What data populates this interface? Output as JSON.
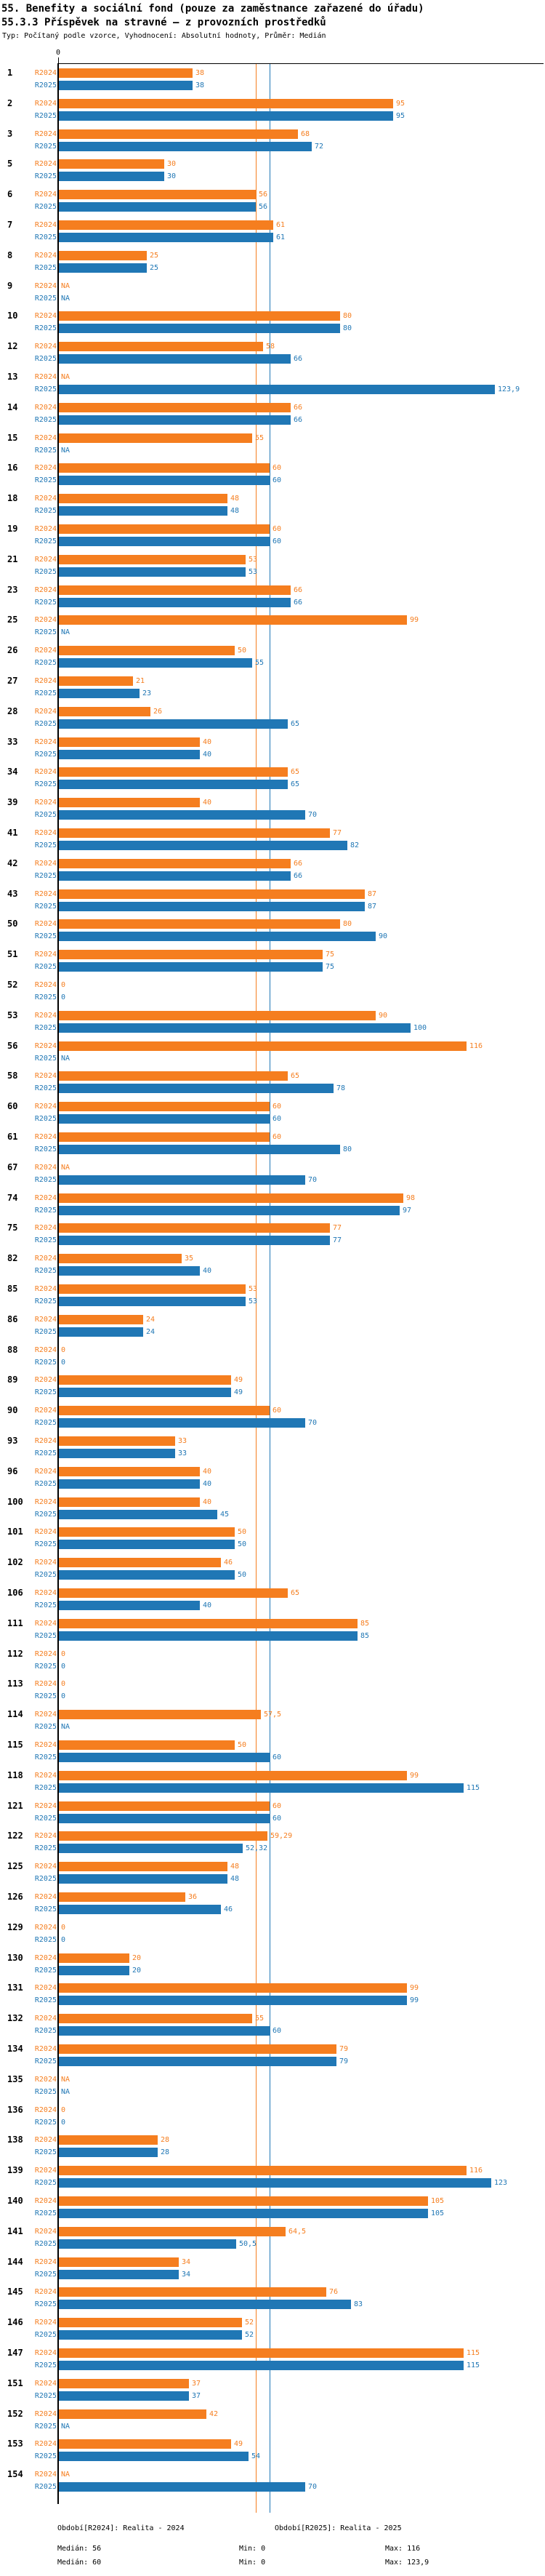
{
  "header": {
    "title_line1": "55. Benefity a sociální fond (pouze za zaměstnance zařazené do úřadu)",
    "title_line2": "55.3.3 Příspěvek na stravné – z provozních prostředků",
    "subtitle": "Typ: Počítaný podle vzorce, Vyhodnocení: Absolutní hodnoty, Průměr: Medián"
  },
  "footer": {
    "legend_2024": "Období[R2024]: Realita - 2024",
    "legend_2025": "Období[R2025]: Realita - 2025",
    "stats_2024": {
      "median": "Medián: 56",
      "min": "Min: 0",
      "max": "Max: 116"
    },
    "stats_2025": {
      "median": "Medián: 60",
      "min": "Min: 0",
      "max": "Max: 123,9"
    }
  },
  "chart_data": {
    "type": "bar",
    "orientation": "horizontal",
    "axis_zero_label": "0",
    "value_axis_min": 0,
    "value_axis_max_shown": 123.9,
    "grid": "median-reference-lines-only",
    "legend_position": "bottom",
    "series": [
      {
        "key": "r2024",
        "name": "R2024",
        "color": "#f57e1f",
        "median": 56,
        "min": 0,
        "max": 116
      },
      {
        "key": "r2025",
        "name": "R2025",
        "color": "#2077b5",
        "median": 60,
        "min": 0,
        "max": 123.9
      }
    ],
    "rows": [
      {
        "id": "1",
        "r2024": "38",
        "r2025": "38"
      },
      {
        "id": "2",
        "r2024": "95",
        "r2025": "95"
      },
      {
        "id": "3",
        "r2024": "68",
        "r2025": "72"
      },
      {
        "id": "5",
        "r2024": "30",
        "r2025": "30"
      },
      {
        "id": "6",
        "r2024": "56",
        "r2025": "56"
      },
      {
        "id": "7",
        "r2024": "61",
        "r2025": "61"
      },
      {
        "id": "8",
        "r2024": "25",
        "r2025": "25"
      },
      {
        "id": "9",
        "r2024": "NA",
        "r2025": "NA"
      },
      {
        "id": "10",
        "r2024": "80",
        "r2025": "80"
      },
      {
        "id": "12",
        "r2024": "58",
        "r2025": "66"
      },
      {
        "id": "13",
        "r2024": "NA",
        "r2025": "123,9"
      },
      {
        "id": "14",
        "r2024": "66",
        "r2025": "66"
      },
      {
        "id": "15",
        "r2024": "55",
        "r2025": "NA"
      },
      {
        "id": "16",
        "r2024": "60",
        "r2025": "60"
      },
      {
        "id": "18",
        "r2024": "48",
        "r2025": "48"
      },
      {
        "id": "19",
        "r2024": "60",
        "r2025": "60"
      },
      {
        "id": "21",
        "r2024": "53",
        "r2025": "53"
      },
      {
        "id": "23",
        "r2024": "66",
        "r2025": "66"
      },
      {
        "id": "25",
        "r2024": "99",
        "r2025": "NA"
      },
      {
        "id": "26",
        "r2024": "50",
        "r2025": "55"
      },
      {
        "id": "27",
        "r2024": "21",
        "r2025": "23"
      },
      {
        "id": "28",
        "r2024": "26",
        "r2025": "65"
      },
      {
        "id": "33",
        "r2024": "40",
        "r2025": "40"
      },
      {
        "id": "34",
        "r2024": "65",
        "r2025": "65"
      },
      {
        "id": "39",
        "r2024": "40",
        "r2025": "70"
      },
      {
        "id": "41",
        "r2024": "77",
        "r2025": "82"
      },
      {
        "id": "42",
        "r2024": "66",
        "r2025": "66"
      },
      {
        "id": "43",
        "r2024": "87",
        "r2025": "87"
      },
      {
        "id": "50",
        "r2024": "80",
        "r2025": "90"
      },
      {
        "id": "51",
        "r2024": "75",
        "r2025": "75"
      },
      {
        "id": "52",
        "r2024": "0",
        "r2025": "0"
      },
      {
        "id": "53",
        "r2024": "90",
        "r2025": "100"
      },
      {
        "id": "56",
        "r2024": "116",
        "r2025": "NA"
      },
      {
        "id": "58",
        "r2024": "65",
        "r2025": "78"
      },
      {
        "id": "60",
        "r2024": "60",
        "r2025": "60"
      },
      {
        "id": "61",
        "r2024": "60",
        "r2025": "80"
      },
      {
        "id": "67",
        "r2024": "NA",
        "r2025": "70"
      },
      {
        "id": "74",
        "r2024": "98",
        "r2025": "97"
      },
      {
        "id": "75",
        "r2024": "77",
        "r2025": "77"
      },
      {
        "id": "82",
        "r2024": "35",
        "r2025": "40"
      },
      {
        "id": "85",
        "r2024": "53",
        "r2025": "53"
      },
      {
        "id": "86",
        "r2024": "24",
        "r2025": "24"
      },
      {
        "id": "88",
        "r2024": "0",
        "r2025": "0"
      },
      {
        "id": "89",
        "r2024": "49",
        "r2025": "49"
      },
      {
        "id": "90",
        "r2024": "60",
        "r2025": "70"
      },
      {
        "id": "93",
        "r2024": "33",
        "r2025": "33"
      },
      {
        "id": "96",
        "r2024": "40",
        "r2025": "40"
      },
      {
        "id": "100",
        "r2024": "40",
        "r2025": "45"
      },
      {
        "id": "101",
        "r2024": "50",
        "r2025": "50"
      },
      {
        "id": "102",
        "r2024": "46",
        "r2025": "50"
      },
      {
        "id": "106",
        "r2024": "65",
        "r2025": "40"
      },
      {
        "id": "111",
        "r2024": "85",
        "r2025": "85"
      },
      {
        "id": "112",
        "r2024": "0",
        "r2025": "0"
      },
      {
        "id": "113",
        "r2024": "0",
        "r2025": "0"
      },
      {
        "id": "114",
        "r2024": "57,5",
        "r2025": "NA"
      },
      {
        "id": "115",
        "r2024": "50",
        "r2025": "60"
      },
      {
        "id": "118",
        "r2024": "99",
        "r2025": "115"
      },
      {
        "id": "121",
        "r2024": "60",
        "r2025": "60"
      },
      {
        "id": "122",
        "r2024": "59,29",
        "r2025": "52,32"
      },
      {
        "id": "125",
        "r2024": "48",
        "r2025": "48"
      },
      {
        "id": "126",
        "r2024": "36",
        "r2025": "46"
      },
      {
        "id": "129",
        "r2024": "0",
        "r2025": "0"
      },
      {
        "id": "130",
        "r2024": "20",
        "r2025": "20"
      },
      {
        "id": "131",
        "r2024": "99",
        "r2025": "99"
      },
      {
        "id": "132",
        "r2024": "55",
        "r2025": "60"
      },
      {
        "id": "134",
        "r2024": "79",
        "r2025": "79"
      },
      {
        "id": "135",
        "r2024": "NA",
        "r2025": "NA"
      },
      {
        "id": "136",
        "r2024": "0",
        "r2025": "0"
      },
      {
        "id": "138",
        "r2024": "28",
        "r2025": "28"
      },
      {
        "id": "139",
        "r2024": "116",
        "r2025": "123"
      },
      {
        "id": "140",
        "r2024": "105",
        "r2025": "105"
      },
      {
        "id": "141",
        "r2024": "64,5",
        "r2025": "50,5"
      },
      {
        "id": "144",
        "r2024": "34",
        "r2025": "34"
      },
      {
        "id": "145",
        "r2024": "76",
        "r2025": "83"
      },
      {
        "id": "146",
        "r2024": "52",
        "r2025": "52"
      },
      {
        "id": "147",
        "r2024": "115",
        "r2025": "115"
      },
      {
        "id": "151",
        "r2024": "37",
        "r2025": "37"
      },
      {
        "id": "152",
        "r2024": "42",
        "r2025": "NA"
      },
      {
        "id": "153",
        "r2024": "49",
        "r2025": "54"
      },
      {
        "id": "154",
        "r2024": "NA",
        "r2025": "70"
      }
    ]
  }
}
